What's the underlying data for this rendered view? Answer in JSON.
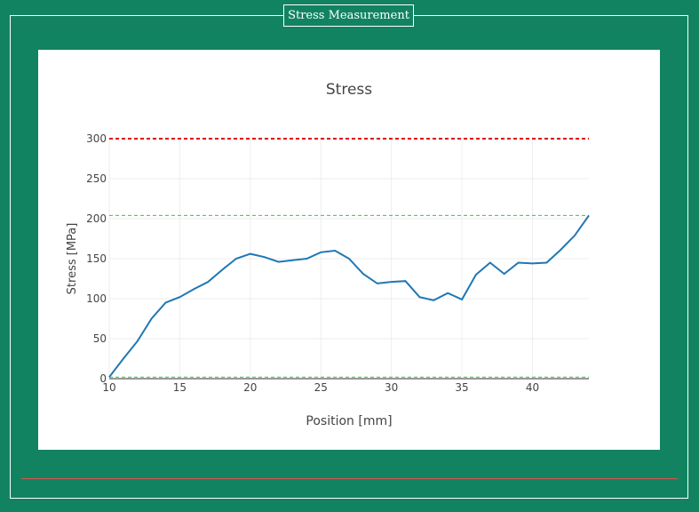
{
  "window": {
    "title": "Stress Measurement"
  },
  "colors": {
    "background": "#128360",
    "panel": "#ffffff",
    "line": "#1f77b4",
    "limit_upper": "#e0001a",
    "band": "#33cc33",
    "divider": "#d9534f"
  },
  "chart_data": {
    "type": "line",
    "title": "Stress",
    "xlabel": "Position [mm]",
    "ylabel": "Stress [MPa]",
    "xlim": [
      10,
      44
    ],
    "ylim": [
      0,
      300
    ],
    "xticks": [
      10,
      15,
      20,
      25,
      30,
      35,
      40
    ],
    "yticks": [
      0,
      50,
      100,
      150,
      200,
      250,
      300
    ],
    "grid": true,
    "x": [
      10,
      11,
      12,
      13,
      14,
      15,
      16,
      17,
      18,
      19,
      20,
      21,
      22,
      23,
      24,
      25,
      26,
      27,
      28,
      29,
      30,
      31,
      32,
      33,
      34,
      35,
      36,
      37,
      38,
      39,
      40,
      41,
      42,
      43,
      44
    ],
    "y": [
      2,
      25,
      47,
      75,
      95,
      102,
      112,
      121,
      136,
      150,
      156,
      152,
      146,
      148,
      150,
      158,
      160,
      150,
      131,
      119,
      121,
      122,
      102,
      98,
      107,
      99,
      130,
      145,
      131,
      145,
      144,
      145,
      161,
      179,
      204
    ],
    "reference_lines": [
      {
        "y": 300,
        "style": "dotted",
        "color": "#e0001a"
      },
      {
        "y": 204,
        "style": "dashed",
        "color": "#33cc33"
      },
      {
        "y": 2,
        "style": "dashed",
        "color": "#33cc33"
      }
    ]
  }
}
